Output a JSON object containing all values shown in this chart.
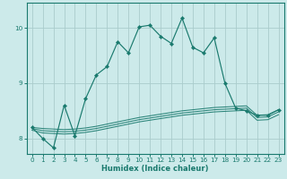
{
  "xlabel": "Humidex (Indice chaleur)",
  "bg_color": "#cceaea",
  "grid_color": "#aacccc",
  "line_color": "#1a7a6e",
  "xlim": [
    -0.5,
    23.5
  ],
  "ylim": [
    7.72,
    10.45
  ],
  "xticks": [
    0,
    1,
    2,
    3,
    4,
    5,
    6,
    7,
    8,
    9,
    10,
    11,
    12,
    13,
    14,
    15,
    16,
    17,
    18,
    19,
    20,
    21,
    22,
    23
  ],
  "yticks": [
    8,
    9,
    10
  ],
  "main_line_x": [
    0,
    1,
    2,
    3,
    4,
    5,
    6,
    7,
    8,
    9,
    10,
    11,
    12,
    13,
    14,
    15,
    16,
    17,
    18,
    19,
    20,
    21,
    22,
    23
  ],
  "main_line_y": [
    8.2,
    8.0,
    7.83,
    8.6,
    8.05,
    8.72,
    9.15,
    9.3,
    9.75,
    9.55,
    10.02,
    10.05,
    9.85,
    9.72,
    10.18,
    9.65,
    9.55,
    9.82,
    9.0,
    8.55,
    8.5,
    8.42,
    8.42,
    8.52
  ],
  "flat_lines": [
    [
      8.2,
      8.18,
      8.17,
      8.16,
      8.17,
      8.19,
      8.22,
      8.26,
      8.3,
      8.34,
      8.38,
      8.41,
      8.44,
      8.47,
      8.5,
      8.52,
      8.54,
      8.56,
      8.57,
      8.58,
      8.59,
      8.42,
      8.43,
      8.52
    ],
    [
      8.18,
      8.14,
      8.13,
      8.12,
      8.13,
      8.15,
      8.18,
      8.22,
      8.26,
      8.3,
      8.34,
      8.37,
      8.4,
      8.43,
      8.46,
      8.48,
      8.5,
      8.52,
      8.53,
      8.54,
      8.55,
      8.38,
      8.39,
      8.48
    ],
    [
      8.15,
      8.1,
      8.09,
      8.08,
      8.09,
      8.11,
      8.14,
      8.18,
      8.22,
      8.26,
      8.3,
      8.33,
      8.36,
      8.39,
      8.42,
      8.44,
      8.46,
      8.48,
      8.49,
      8.5,
      8.51,
      8.33,
      8.34,
      8.43
    ]
  ]
}
